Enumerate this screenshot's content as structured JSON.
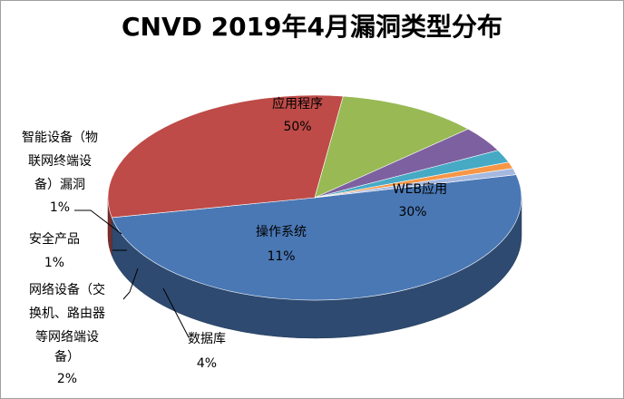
{
  "chart_data": {
    "type": "pie",
    "title": "CNVD 2019年4月漏洞类型分布",
    "slices": [
      {
        "name": "应用程序",
        "value": 50,
        "label": "50%",
        "color": "#4a78b5"
      },
      {
        "name": "WEB应用",
        "value": 30,
        "label": "30%",
        "color": "#be4b48"
      },
      {
        "name": "操作系统",
        "value": 11,
        "label": "11%",
        "color": "#98b954"
      },
      {
        "name": "数据库",
        "value": 4,
        "label": "4%",
        "color": "#7d60a0"
      },
      {
        "name": "网络设备（交换机、路由器等网络端设备）",
        "value": 2,
        "label": "2%",
        "color": "#46aac5"
      },
      {
        "name": "安全产品",
        "value": 1,
        "label": "1%",
        "color": "#f79646"
      },
      {
        "name": "智能设备（物联网终端设备）漏洞",
        "value": 1,
        "label": "1%",
        "color": "#a5b9e0"
      }
    ],
    "legend": "none",
    "style": "3d-pie"
  }
}
